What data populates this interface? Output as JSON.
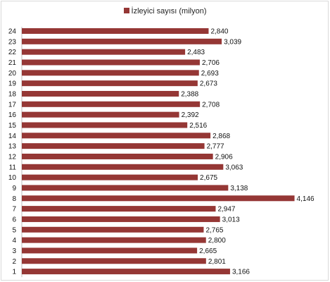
{
  "chart_data": {
    "type": "bar",
    "orientation": "horizontal",
    "categories": [
      "1",
      "2",
      "3",
      "4",
      "5",
      "6",
      "7",
      "8",
      "9",
      "10",
      "11",
      "12",
      "13",
      "14",
      "15",
      "16",
      "17",
      "18",
      "19",
      "20",
      "21",
      "22",
      "23",
      "24"
    ],
    "series": [
      {
        "name": "İzleyici sayısı (milyon)",
        "color": "#953735",
        "values": [
          3.166,
          2.801,
          2.665,
          2.8,
          2.765,
          3.013,
          2.947,
          4.146,
          3.138,
          2.675,
          3.063,
          2.906,
          2.777,
          2.868,
          2.516,
          2.392,
          2.708,
          2.388,
          2.673,
          2.693,
          2.706,
          2.483,
          3.039,
          2.84
        ],
        "labels": [
          "3,166",
          "2,801",
          "2,665",
          "2,800",
          "2,765",
          "3,013",
          "2,947",
          "4,146",
          "3,138",
          "2,675",
          "3,063",
          "2,906",
          "2,777",
          "2,868",
          "2,516",
          "2,392",
          "2,708",
          "2,388",
          "2,673",
          "2,693",
          "2,706",
          "2,483",
          "3,039",
          "2,840"
        ]
      }
    ],
    "xlim": [
      0,
      4.6
    ],
    "grid": false,
    "legend_position": "top"
  }
}
